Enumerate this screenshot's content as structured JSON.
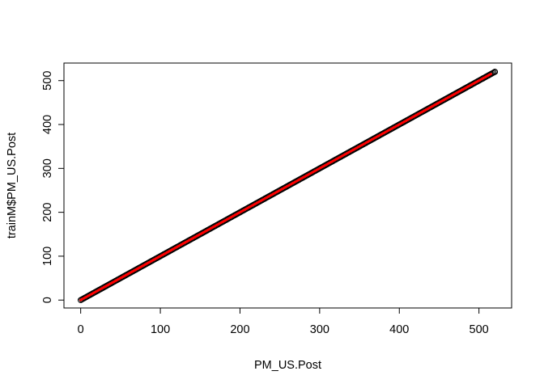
{
  "chart_data": {
    "type": "scatter",
    "title": "",
    "xlabel": "PM_US.Post",
    "ylabel": "trainM$PM_US.Post",
    "xlim": [
      -21,
      541
    ],
    "ylim": [
      -18,
      540
    ],
    "xticks": [
      0,
      100,
      200,
      300,
      400,
      500
    ],
    "yticks": [
      0,
      100,
      200,
      300,
      400,
      500
    ],
    "grid": false,
    "legend": "none",
    "series": [
      {
        "marker": "open-circle",
        "color": "#000000",
        "x_range": [
          0,
          520
        ],
        "relation": "y = x",
        "last_point": [
          520,
          520
        ]
      }
    ],
    "fit_line": {
      "color": "#ff0000",
      "from": [
        0,
        0
      ],
      "to": [
        515,
        515
      ]
    }
  }
}
